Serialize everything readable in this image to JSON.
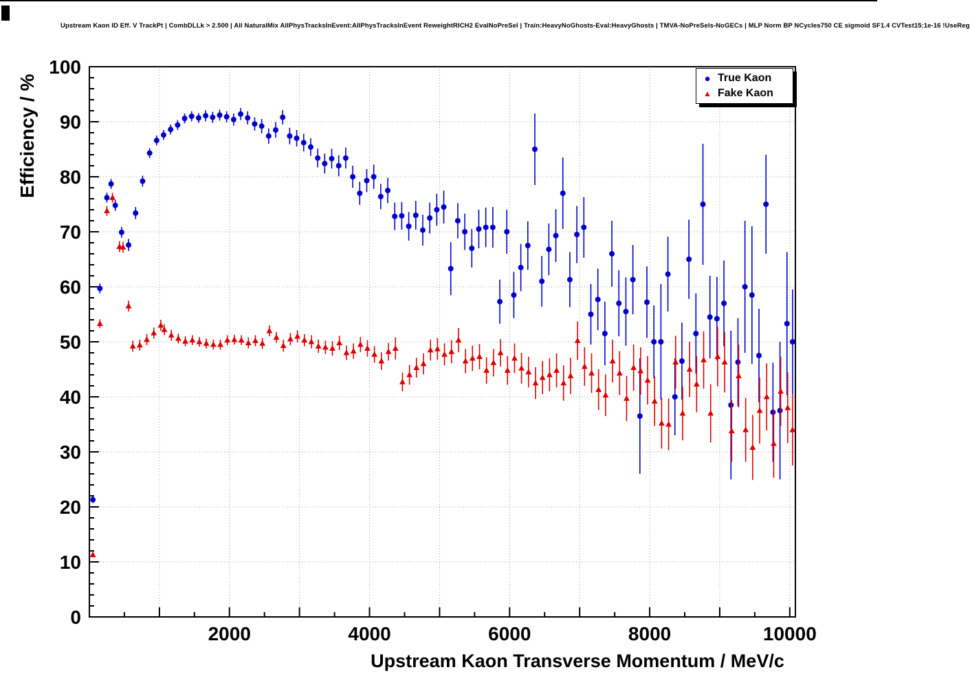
{
  "chart_data": {
    "type": "scatter",
    "title": "Upstream Kaon ID Eff. V TrackPt | CombDLLk > 2.500 | All NaturalMix AllPhysTracksInEvent:AllPhysTracksInEvent ReweightRICH2 EvalNoPreSel | Train:HeavyNoGhosts-Eval:HeavyGhosts | TMVA-NoPreSels-NoGECs | MLP Norm BP NCycles750 CE sigmoid SF1.4 CVTest15:1e-16 !UseReg",
    "xlabel": "Upstream Kaon Transverse Momentum / MeV/c",
    "ylabel": "Efficiency / %",
    "xlim": [
      0,
      10080
    ],
    "ylim": [
      0,
      100
    ],
    "grid": true,
    "x_grid_step": 1000,
    "x_minor_step": 500,
    "y_grid_step": 10,
    "y_minor_step": 2,
    "x_major_ticks": [
      2000,
      4000,
      6000,
      8000,
      10000
    ],
    "x_tick_labels": [
      "2000",
      "4000",
      "6000",
      "8000",
      "10000"
    ],
    "y_tick_labels": [
      "0",
      "10",
      "20",
      "30",
      "40",
      "50",
      "60",
      "70",
      "80",
      "90",
      "100"
    ],
    "legend": {
      "position": "top-right",
      "entries": [
        {
          "label": "True Kaon",
          "marker": "circle",
          "color": "#0000cc"
        },
        {
          "label": "Fake Kaon",
          "marker": "triangle-up",
          "color": "#e00000"
        }
      ]
    },
    "series": [
      {
        "name": "True Kaon",
        "marker": "circle",
        "color": "#0000cc",
        "points": [
          [
            50,
            21.3,
            0.6
          ],
          [
            150,
            59.7,
            0.9
          ],
          [
            250,
            76.2,
            0.9
          ],
          [
            310,
            78.7,
            0.9
          ],
          [
            370,
            74.8,
            1.0
          ],
          [
            460,
            69.9,
            1.0
          ],
          [
            560,
            67.6,
            1.1
          ],
          [
            660,
            73.4,
            1.1
          ],
          [
            760,
            79.2,
            1.0
          ],
          [
            860,
            84.3,
            0.9
          ],
          [
            960,
            86.6,
            0.9
          ],
          [
            1060,
            87.6,
            0.9
          ],
          [
            1160,
            88.6,
            0.9
          ],
          [
            1260,
            89.4,
            0.9
          ],
          [
            1360,
            90.6,
            0.9
          ],
          [
            1460,
            91.0,
            0.9
          ],
          [
            1560,
            90.7,
            0.9
          ],
          [
            1660,
            91.1,
            1.0
          ],
          [
            1760,
            90.8,
            1.0
          ],
          [
            1860,
            91.2,
            1.0
          ],
          [
            1960,
            90.9,
            1.0
          ],
          [
            2060,
            90.4,
            1.1
          ],
          [
            2160,
            91.4,
            1.1
          ],
          [
            2260,
            90.7,
            1.2
          ],
          [
            2360,
            89.6,
            1.2
          ],
          [
            2460,
            89.2,
            1.3
          ],
          [
            2560,
            87.4,
            1.4
          ],
          [
            2660,
            88.5,
            1.4
          ],
          [
            2760,
            90.8,
            1.3
          ],
          [
            2860,
            87.4,
            1.5
          ],
          [
            2960,
            87.0,
            1.5
          ],
          [
            3060,
            86.2,
            1.6
          ],
          [
            3160,
            85.4,
            1.6
          ],
          [
            3260,
            83.4,
            1.7
          ],
          [
            3360,
            82.4,
            1.8
          ],
          [
            3460,
            83.3,
            1.8
          ],
          [
            3560,
            82.0,
            1.9
          ],
          [
            3660,
            83.4,
            1.9
          ],
          [
            3760,
            80.0,
            2.0
          ],
          [
            3860,
            77.0,
            2.1
          ],
          [
            3960,
            79.3,
            2.1
          ],
          [
            4060,
            80.0,
            2.2
          ],
          [
            4160,
            76.4,
            2.3
          ],
          [
            4260,
            77.5,
            2.3
          ],
          [
            4360,
            72.8,
            2.5
          ],
          [
            4460,
            72.9,
            2.5
          ],
          [
            4560,
            71.0,
            2.6
          ],
          [
            4660,
            73.0,
            2.6
          ],
          [
            4760,
            70.3,
            2.8
          ],
          [
            4860,
            72.5,
            2.8
          ],
          [
            4960,
            74.0,
            2.9
          ],
          [
            5060,
            74.5,
            3.0
          ],
          [
            5160,
            63.3,
            4.8
          ],
          [
            5260,
            72.0,
            3.2
          ],
          [
            5360,
            70.0,
            3.3
          ],
          [
            5460,
            67.0,
            3.5
          ],
          [
            5560,
            70.5,
            3.5
          ],
          [
            5660,
            70.8,
            3.6
          ],
          [
            5760,
            70.8,
            3.7
          ],
          [
            5860,
            57.3,
            4.0
          ],
          [
            5960,
            70.0,
            4.0
          ],
          [
            6060,
            58.5,
            4.2
          ],
          [
            6160,
            63.5,
            4.3
          ],
          [
            6260,
            67.5,
            4.4
          ],
          [
            6360,
            85.0,
            6.5
          ],
          [
            6460,
            61.0,
            4.6
          ],
          [
            6560,
            66.8,
            4.7
          ],
          [
            6660,
            69.3,
            4.8
          ],
          [
            6760,
            77.0,
            6.5
          ],
          [
            6860,
            61.3,
            5.0
          ],
          [
            6960,
            69.5,
            5.2
          ],
          [
            7060,
            70.8,
            5.5
          ],
          [
            7160,
            55.0,
            5.5
          ],
          [
            7260,
            57.7,
            5.6
          ],
          [
            7360,
            51.5,
            5.8
          ],
          [
            7460,
            66.0,
            6.0
          ],
          [
            7560,
            57.0,
            6.0
          ],
          [
            7660,
            55.5,
            6.2
          ],
          [
            7760,
            61.3,
            6.3
          ],
          [
            7860,
            36.5,
            10.5
          ],
          [
            7960,
            57.2,
            6.5
          ],
          [
            8060,
            50.0,
            6.6
          ],
          [
            8160,
            50.0,
            10.5
          ],
          [
            8260,
            62.3,
            6.8
          ],
          [
            8360,
            40.0,
            7.0
          ],
          [
            8460,
            46.5,
            7.0
          ],
          [
            8560,
            65.0,
            7.2
          ],
          [
            8660,
            51.5,
            7.3
          ],
          [
            8760,
            75.0,
            11.0
          ],
          [
            8860,
            54.5,
            7.5
          ],
          [
            8960,
            54.2,
            7.6
          ],
          [
            9060,
            57.0,
            7.8
          ],
          [
            9160,
            38.5,
            13.5
          ],
          [
            9260,
            46.3,
            8.0
          ],
          [
            9360,
            60.0,
            12.0
          ],
          [
            9460,
            58.5,
            12.5
          ],
          [
            9560,
            47.5,
            8.5
          ],
          [
            9660,
            75.0,
            9.0
          ],
          [
            9760,
            37.2,
            9.0
          ],
          [
            9860,
            37.5,
            12.5
          ],
          [
            9960,
            53.3,
            13.0
          ],
          [
            10040,
            50.0,
            9.5
          ]
        ]
      },
      {
        "name": "Fake Kaon",
        "marker": "triangle-up",
        "color": "#e00000",
        "points": [
          [
            50,
            11.3,
            0.5
          ],
          [
            150,
            53.3,
            0.8
          ],
          [
            250,
            73.8,
            0.9
          ],
          [
            330,
            76.2,
            0.9
          ],
          [
            430,
            67.3,
            1.0
          ],
          [
            480,
            67.2,
            1.0
          ],
          [
            560,
            56.5,
            1.0
          ],
          [
            620,
            49.2,
            1.0
          ],
          [
            720,
            49.4,
            1.0
          ],
          [
            820,
            50.4,
            1.0
          ],
          [
            920,
            51.6,
            1.0
          ],
          [
            1020,
            53.0,
            1.0
          ],
          [
            1070,
            52.2,
            1.0
          ],
          [
            1170,
            51.2,
            1.0
          ],
          [
            1270,
            50.6,
            0.9
          ],
          [
            1370,
            50.1,
            0.9
          ],
          [
            1470,
            50.3,
            0.9
          ],
          [
            1570,
            50.0,
            0.9
          ],
          [
            1670,
            49.7,
            0.9
          ],
          [
            1770,
            49.5,
            0.9
          ],
          [
            1870,
            49.5,
            0.9
          ],
          [
            1970,
            50.3,
            0.9
          ],
          [
            2070,
            50.4,
            0.9
          ],
          [
            2170,
            50.3,
            0.9
          ],
          [
            2270,
            49.8,
            1.0
          ],
          [
            2370,
            50.2,
            1.0
          ],
          [
            2470,
            49.7,
            1.0
          ],
          [
            2570,
            52.0,
            1.0
          ],
          [
            2670,
            50.8,
            1.0
          ],
          [
            2770,
            49.3,
            1.1
          ],
          [
            2870,
            50.5,
            1.1
          ],
          [
            2970,
            51.0,
            1.1
          ],
          [
            3070,
            50.3,
            1.1
          ],
          [
            3170,
            50.0,
            1.2
          ],
          [
            3270,
            49.2,
            1.2
          ],
          [
            3370,
            49.0,
            1.2
          ],
          [
            3470,
            48.8,
            1.3
          ],
          [
            3570,
            49.8,
            1.3
          ],
          [
            3670,
            48.0,
            1.3
          ],
          [
            3770,
            48.3,
            1.4
          ],
          [
            3870,
            49.5,
            1.4
          ],
          [
            3970,
            48.8,
            1.5
          ],
          [
            4070,
            47.7,
            1.5
          ],
          [
            4170,
            46.5,
            1.6
          ],
          [
            4270,
            48.2,
            1.6
          ],
          [
            4370,
            48.8,
            2.0
          ],
          [
            4470,
            42.7,
            1.7
          ],
          [
            4570,
            44.0,
            1.8
          ],
          [
            4670,
            45.3,
            1.8
          ],
          [
            4770,
            46.0,
            1.9
          ],
          [
            4870,
            48.5,
            1.9
          ],
          [
            4970,
            48.7,
            2.0
          ],
          [
            5070,
            47.7,
            2.0
          ],
          [
            5170,
            48.2,
            2.1
          ],
          [
            5270,
            50.3,
            2.2
          ],
          [
            5370,
            46.5,
            2.2
          ],
          [
            5470,
            47.0,
            2.3
          ],
          [
            5570,
            47.3,
            2.3
          ],
          [
            5670,
            44.8,
            2.4
          ],
          [
            5770,
            46.2,
            2.5
          ],
          [
            5870,
            48.0,
            2.5
          ],
          [
            5970,
            44.8,
            2.6
          ],
          [
            6070,
            47.0,
            2.7
          ],
          [
            6170,
            45.2,
            2.8
          ],
          [
            6270,
            44.5,
            2.8
          ],
          [
            6370,
            42.5,
            2.9
          ],
          [
            6470,
            43.5,
            3.0
          ],
          [
            6570,
            44.0,
            3.0
          ],
          [
            6670,
            44.8,
            3.1
          ],
          [
            6770,
            42.5,
            3.2
          ],
          [
            6870,
            43.8,
            3.3
          ],
          [
            6970,
            50.2,
            3.5
          ],
          [
            7070,
            45.5,
            3.5
          ],
          [
            7170,
            44.3,
            3.6
          ],
          [
            7270,
            41.3,
            3.7
          ],
          [
            7370,
            40.3,
            3.8
          ],
          [
            7470,
            46.5,
            3.9
          ],
          [
            7570,
            44.3,
            4.0
          ],
          [
            7670,
            39.7,
            4.1
          ],
          [
            7770,
            45.3,
            4.2
          ],
          [
            7870,
            44.7,
            4.3
          ],
          [
            7970,
            43.0,
            4.4
          ],
          [
            8070,
            39.2,
            4.5
          ],
          [
            8170,
            35.2,
            4.6
          ],
          [
            8270,
            35.0,
            4.7
          ],
          [
            8370,
            46.3,
            4.8
          ],
          [
            8470,
            37.0,
            4.9
          ],
          [
            8570,
            45.0,
            5.0
          ],
          [
            8670,
            42.3,
            5.1
          ],
          [
            8770,
            46.7,
            5.2
          ],
          [
            8870,
            37.0,
            5.3
          ],
          [
            8970,
            47.3,
            5.4
          ],
          [
            9070,
            46.3,
            5.5
          ],
          [
            9170,
            33.8,
            5.6
          ],
          [
            9270,
            43.8,
            5.7
          ],
          [
            9370,
            34.0,
            5.8
          ],
          [
            9470,
            30.8,
            5.9
          ],
          [
            9570,
            37.5,
            6.0
          ],
          [
            9670,
            40.0,
            6.1
          ],
          [
            9770,
            31.5,
            6.2
          ],
          [
            9870,
            41.0,
            6.3
          ],
          [
            9970,
            38.0,
            6.4
          ],
          [
            10040,
            34.0,
            6.5
          ]
        ]
      }
    ]
  }
}
